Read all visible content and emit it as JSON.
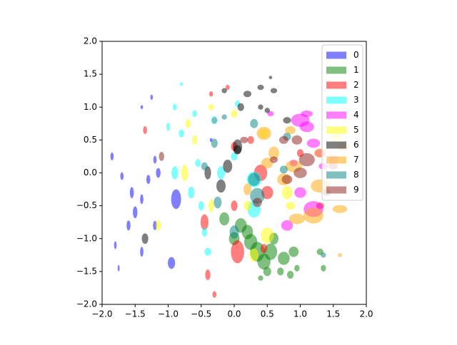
{
  "chart_data": {
    "type": "scatter",
    "marker": "ellipse",
    "legend": "upper right",
    "xlim": [
      -2,
      2
    ],
    "ylim": [
      -2,
      2
    ],
    "xticks": [
      {
        "value": -2,
        "label": "−2.0"
      },
      {
        "value": -1.5,
        "label": "−1.5"
      },
      {
        "value": -1,
        "label": "−1.0"
      },
      {
        "value": -0.5,
        "label": "−0.5"
      },
      {
        "value": 0,
        "label": "0.0"
      },
      {
        "value": 0.5,
        "label": "0.5"
      },
      {
        "value": 1,
        "label": "1.0"
      },
      {
        "value": 1.5,
        "label": "1.5"
      },
      {
        "value": 2,
        "label": "2.0"
      }
    ],
    "yticks": [
      {
        "value": -2,
        "label": "−2.0"
      },
      {
        "value": -1.5,
        "label": "−1.5"
      },
      {
        "value": -1,
        "label": "−1.0"
      },
      {
        "value": -0.5,
        "label": "−0.5"
      },
      {
        "value": 0,
        "label": "0.0"
      },
      {
        "value": 0.5,
        "label": "0.5"
      },
      {
        "value": 1,
        "label": "1.0"
      },
      {
        "value": 1.5,
        "label": "1.5"
      },
      {
        "value": 2,
        "label": "2.0"
      }
    ],
    "series": [
      {
        "name": "0",
        "color": "#0000ff",
        "x": [
          -1.85,
          -1.7,
          -1.55,
          -1.4,
          -1.8,
          -1.6,
          -1.5,
          -1.2,
          -1.4,
          -0.95,
          -0.88,
          -1.2,
          -1.4,
          -1.25,
          -0.35,
          -1.75,
          -1.15,
          -1.3
        ],
        "y": [
          0.25,
          -0.05,
          -0.3,
          -0.4,
          -1.1,
          -0.8,
          -0.6,
          -0.8,
          -1.2,
          -1.37,
          -0.4,
          0.2,
          1.0,
          1.15,
          0.5,
          -1.45,
          0.0,
          -0.1
        ],
        "widths": [
          0.05,
          0.05,
          0.06,
          0.05,
          0.04,
          0.06,
          0.07,
          0.06,
          0.05,
          0.11,
          0.15,
          0.05,
          0.04,
          0.04,
          0.04,
          0.03,
          0.07,
          0.06
        ],
        "heights": [
          0.12,
          0.12,
          0.17,
          0.15,
          0.12,
          0.15,
          0.18,
          0.14,
          0.15,
          0.18,
          0.3,
          0.12,
          0.06,
          0.08,
          0.06,
          0.1,
          0.15,
          0.14
        ]
      },
      {
        "name": "1",
        "color": "#008000",
        "x": [
          0.1,
          0.25,
          0.35,
          0.55,
          0.75,
          0.9,
          -0.15,
          0.0,
          0.5,
          0.7,
          0.95,
          1.35,
          0.2,
          0.6,
          1.3,
          0.45,
          0.4,
          0.85
        ],
        "y": [
          -0.8,
          -1.05,
          -1.2,
          -1.2,
          -1.3,
          -1.2,
          -0.7,
          -1.0,
          -1.5,
          -1.5,
          -1.45,
          -1.45,
          -0.9,
          -1.0,
          -1.2,
          -1.35,
          -1.6,
          -1.55
        ],
        "widths": [
          0.18,
          0.2,
          0.22,
          0.2,
          0.18,
          0.15,
          0.15,
          0.16,
          0.12,
          0.1,
          0.08,
          0.08,
          0.17,
          0.14,
          0.1,
          0.2,
          0.08,
          0.1
        ],
        "heights": [
          0.22,
          0.24,
          0.3,
          0.25,
          0.2,
          0.16,
          0.2,
          0.2,
          0.14,
          0.12,
          0.1,
          0.1,
          0.22,
          0.18,
          0.1,
          0.24,
          0.08,
          0.12
        ]
      },
      {
        "name": "2",
        "color": "#ff0000",
        "x": [
          0.4,
          0.5,
          0.0,
          -0.3,
          -0.35,
          0.05,
          0.25,
          -0.45,
          -1.35,
          -0.4,
          -0.3,
          1.3,
          0.45,
          1.0,
          -0.1,
          0.0
        ],
        "y": [
          0.0,
          -0.3,
          0.4,
          0.8,
          1.2,
          -1.2,
          0.5,
          -0.75,
          0.65,
          -1.55,
          -1.85,
          -0.5,
          -1.15,
          0.3,
          1.3,
          -0.5
        ],
        "widths": [
          0.2,
          0.18,
          0.1,
          0.08,
          0.06,
          0.2,
          0.1,
          0.12,
          0.06,
          0.08,
          0.06,
          0.12,
          0.1,
          0.1,
          0.06,
          0.1
        ],
        "heights": [
          0.25,
          0.2,
          0.14,
          0.1,
          0.08,
          0.35,
          0.12,
          0.24,
          0.12,
          0.16,
          0.1,
          0.1,
          0.14,
          0.12,
          0.08,
          0.16
        ]
      },
      {
        "name": "3",
        "color": "#00ffff",
        "x": [
          -0.9,
          -0.8,
          -0.6,
          -0.9,
          -0.65,
          -0.5,
          -0.3,
          -0.2,
          0.3,
          0.3,
          0.0,
          -0.45,
          -0.4,
          -0.8,
          -1.0,
          -0.55,
          0.05
        ],
        "y": [
          1.0,
          0.6,
          0.9,
          0.0,
          -0.3,
          -0.5,
          0.8,
          0.0,
          -0.1,
          -0.55,
          0.25,
          -0.9,
          -1.2,
          1.35,
          0.7,
          0.15,
          1.05
        ],
        "widths": [
          0.06,
          0.08,
          0.07,
          0.1,
          0.1,
          0.08,
          0.1,
          0.12,
          0.22,
          0.2,
          0.1,
          0.08,
          0.1,
          0.05,
          0.06,
          0.08,
          0.08
        ],
        "heights": [
          0.1,
          0.12,
          0.1,
          0.2,
          0.18,
          0.14,
          0.12,
          0.2,
          0.24,
          0.26,
          0.12,
          0.14,
          0.12,
          0.06,
          0.12,
          0.12,
          0.1
        ]
      },
      {
        "name": "4",
        "color": "#ff00ff",
        "x": [
          1.0,
          1.1,
          1.2,
          1.3,
          1.2,
          1.0,
          0.9,
          1.5,
          0.8,
          1.35,
          1.1,
          0.55
        ],
        "y": [
          0.8,
          0.7,
          0.45,
          0.3,
          -0.55,
          -0.3,
          0.15,
          0.2,
          -0.8,
          0.1,
          0.9,
          0.9
        ],
        "widths": [
          0.28,
          0.22,
          0.2,
          0.16,
          0.3,
          0.18,
          0.12,
          0.16,
          0.18,
          0.14,
          0.18,
          0.1
        ],
        "heights": [
          0.2,
          0.16,
          0.14,
          0.12,
          0.24,
          0.16,
          0.1,
          0.12,
          0.16,
          0.1,
          0.1,
          0.08
        ]
      },
      {
        "name": "5",
        "color": "#ffff00",
        "x": [
          -0.7,
          -0.75,
          -0.6,
          -0.35,
          0.5,
          0.8,
          0.3,
          1.55,
          0.45,
          -1.15,
          0.2,
          0.85,
          0.0,
          -0.35
        ],
        "y": [
          0.75,
          0.0,
          0.5,
          -0.5,
          -0.95,
          -0.3,
          -1.25,
          0.55,
          0.6,
          -0.8,
          -0.5,
          -0.5,
          0.9,
          1.0
        ],
        "widths": [
          0.08,
          0.1,
          0.08,
          0.08,
          0.2,
          0.16,
          0.14,
          0.18,
          0.14,
          0.08,
          0.12,
          0.14,
          0.1,
          0.08
        ],
        "heights": [
          0.14,
          0.25,
          0.14,
          0.2,
          0.24,
          0.2,
          0.2,
          0.14,
          0.14,
          0.16,
          0.14,
          0.12,
          0.12,
          0.1
        ]
      },
      {
        "name": "6",
        "color": "#000000",
        "x": [
          0.2,
          0.4,
          0.55,
          0.6,
          0.1,
          0.5,
          -0.1,
          0.05,
          -0.4,
          -0.2,
          0.05,
          -1.35,
          0.8,
          -0.15,
          0.4
        ],
        "y": [
          1.2,
          1.3,
          1.45,
          1.25,
          1.0,
          0.95,
          0.1,
          0.4,
          0.0,
          -0.2,
          0.35,
          -1.0,
          0.8,
          1.25,
          1.0
        ],
        "widths": [
          0.12,
          0.1,
          0.05,
          0.1,
          0.1,
          0.08,
          0.14,
          0.14,
          0.1,
          0.14,
          0.12,
          0.1,
          0.12,
          0.08,
          0.08
        ],
        "heights": [
          0.1,
          0.08,
          0.05,
          0.08,
          0.12,
          0.08,
          0.2,
          0.22,
          0.2,
          0.2,
          0.14,
          0.16,
          0.1,
          0.08,
          0.08
        ]
      },
      {
        "name": "7",
        "color": "#ffa500",
        "x": [
          0.45,
          0.9,
          1.3,
          1.2,
          1.6,
          0.95,
          1.65,
          0.2,
          0.6,
          1.3,
          0.75,
          1.6,
          0.5,
          0.85
        ],
        "y": [
          0.6,
          0.1,
          -0.2,
          -0.65,
          -0.55,
          -0.7,
          0.4,
          -0.25,
          0.3,
          0.3,
          -0.1,
          -1.25,
          0.15,
          0.65
        ],
        "widths": [
          0.22,
          0.25,
          0.28,
          0.3,
          0.22,
          0.24,
          0.18,
          0.12,
          0.16,
          0.18,
          0.2,
          0.06,
          0.18,
          0.16
        ],
        "heights": [
          0.2,
          0.18,
          0.2,
          0.24,
          0.12,
          0.16,
          0.12,
          0.18,
          0.2,
          0.14,
          0.18,
          0.06,
          0.16,
          0.12
        ]
      },
      {
        "name": "8",
        "color": "#008080",
        "x": [
          -0.3,
          0.35,
          0.3,
          -0.25,
          0.0,
          -0.45,
          0.75,
          0.3,
          1.35,
          0.8,
          -0.15
        ],
        "y": [
          0.45,
          -0.35,
          -0.1,
          -0.45,
          -0.9,
          0.1,
          0.05,
          0.75,
          -1.25,
          0.55,
          0.85
        ],
        "widths": [
          0.1,
          0.22,
          0.18,
          0.12,
          0.14,
          0.1,
          0.12,
          0.12,
          0.08,
          0.12,
          0.08
        ],
        "heights": [
          0.14,
          0.24,
          0.2,
          0.18,
          0.2,
          0.12,
          0.12,
          0.14,
          0.08,
          0.12,
          0.08
        ]
      },
      {
        "name": "9",
        "color": "#8b1a1a",
        "x": [
          1.1,
          0.95,
          1.0,
          0.75,
          0.6,
          1.4,
          0.35,
          -1.1,
          0.8,
          1.5,
          0.15
        ],
        "y": [
          0.2,
          0.5,
          0.0,
          0.5,
          0.2,
          -0.3,
          -0.45,
          0.25,
          -0.1,
          0.1,
          0.5
        ],
        "widths": [
          0.24,
          0.16,
          0.2,
          0.14,
          0.12,
          0.12,
          0.14,
          0.08,
          0.16,
          0.14,
          0.12
        ],
        "heights": [
          0.2,
          0.14,
          0.16,
          0.12,
          0.1,
          0.1,
          0.14,
          0.14,
          0.14,
          0.1,
          0.1
        ]
      }
    ]
  }
}
